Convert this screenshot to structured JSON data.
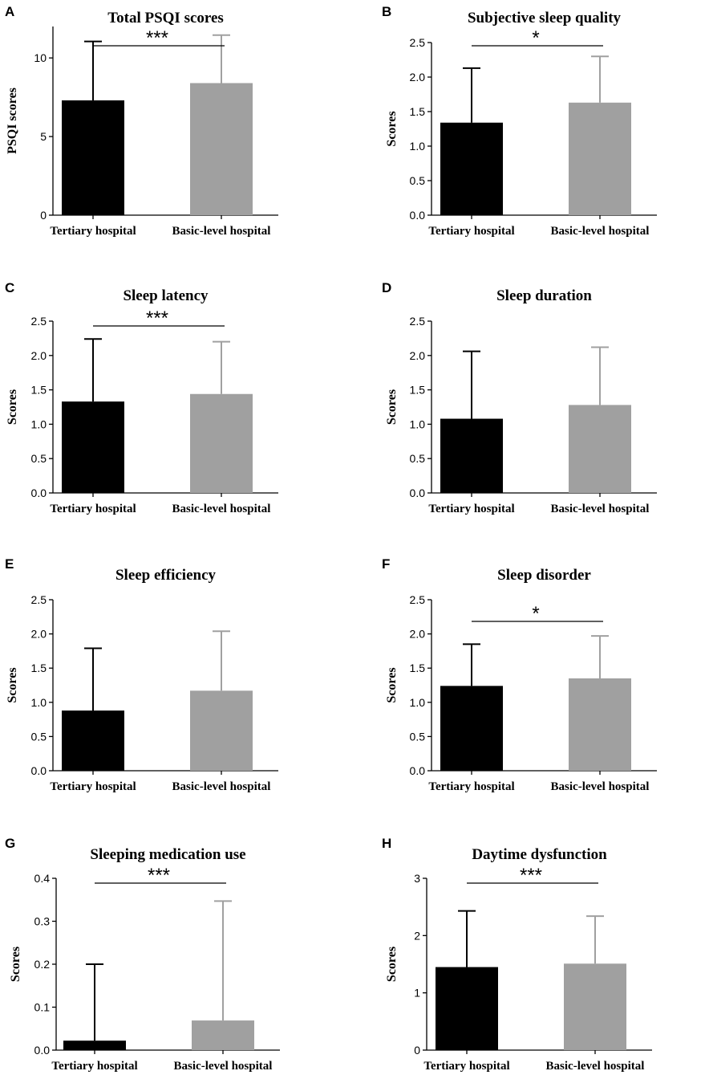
{
  "chart_data": [
    {
      "panel": "A",
      "type": "bar",
      "title": "Total PSQI scores",
      "ylabel": "PSQI scores",
      "categories": [
        "Tertiary hospital",
        "Basic-level hospital"
      ],
      "values": [
        7.3,
        8.4
      ],
      "errors": [
        3.75,
        3.05
      ],
      "ylim": [
        0,
        12
      ],
      "yticks": [
        0,
        5,
        10
      ],
      "ytick_labels": [
        "0",
        "5",
        "10"
      ],
      "significance": "***",
      "colors": [
        "#000000",
        "#a0a0a0"
      ]
    },
    {
      "panel": "B",
      "type": "bar",
      "title": "Subjective sleep quality",
      "ylabel": "Scores",
      "categories": [
        "Tertiary hospital",
        "Basic-level hospital"
      ],
      "values": [
        1.34,
        1.63
      ],
      "errors": [
        0.79,
        0.67
      ],
      "ylim": [
        0,
        2.5
      ],
      "yticks": [
        0,
        0.5,
        1.0,
        1.5,
        2.0,
        2.5
      ],
      "ytick_labels": [
        "0.0",
        "0.5",
        "1.0",
        "1.5",
        "2.0",
        "2.5"
      ],
      "significance": "*",
      "colors": [
        "#000000",
        "#a0a0a0"
      ]
    },
    {
      "panel": "C",
      "type": "bar",
      "title": "Sleep latency",
      "ylabel": "Scores",
      "categories": [
        "Tertiary hospital",
        "Basic-level hospital"
      ],
      "values": [
        1.33,
        1.44
      ],
      "errors": [
        0.91,
        0.76
      ],
      "ylim": [
        0,
        2.5
      ],
      "yticks": [
        0,
        0.5,
        1.0,
        1.5,
        2.0,
        2.5
      ],
      "ytick_labels": [
        "0.0",
        "0.5",
        "1.0",
        "1.5",
        "2.0",
        "2.5"
      ],
      "significance": "***",
      "colors": [
        "#000000",
        "#a0a0a0"
      ]
    },
    {
      "panel": "D",
      "type": "bar",
      "title": "Sleep duration",
      "ylabel": "Scores",
      "categories": [
        "Tertiary hospital",
        "Basic-level hospital"
      ],
      "values": [
        1.08,
        1.28
      ],
      "errors": [
        0.98,
        0.84
      ],
      "ylim": [
        0,
        2.5
      ],
      "yticks": [
        0,
        0.5,
        1.0,
        1.5,
        2.0,
        2.5
      ],
      "ytick_labels": [
        "0.0",
        "0.5",
        "1.0",
        "1.5",
        "2.0",
        "2.5"
      ],
      "significance": "",
      "colors": [
        "#000000",
        "#a0a0a0"
      ]
    },
    {
      "panel": "E",
      "type": "bar",
      "title": "Sleep efficiency",
      "ylabel": "Scores",
      "categories": [
        "Tertiary hospital",
        "Basic-level hospital"
      ],
      "values": [
        0.88,
        1.17
      ],
      "errors": [
        0.91,
        0.87
      ],
      "ylim": [
        0,
        2.5
      ],
      "yticks": [
        0,
        0.5,
        1.0,
        1.5,
        2.0,
        2.5
      ],
      "ytick_labels": [
        "0.0",
        "0.5",
        "1.0",
        "1.5",
        "2.0",
        "2.5"
      ],
      "significance": "",
      "colors": [
        "#000000",
        "#a0a0a0"
      ]
    },
    {
      "panel": "F",
      "type": "bar",
      "title": "Sleep disorder",
      "ylabel": "Scores",
      "categories": [
        "Tertiary hospital",
        "Basic-level hospital"
      ],
      "values": [
        1.24,
        1.35
      ],
      "errors": [
        0.61,
        0.62
      ],
      "ylim": [
        0,
        2.5
      ],
      "yticks": [
        0,
        0.5,
        1.0,
        1.5,
        2.0,
        2.5
      ],
      "ytick_labels": [
        "0.0",
        "0.5",
        "1.0",
        "1.5",
        "2.0",
        "2.5"
      ],
      "significance": "*",
      "colors": [
        "#000000",
        "#a0a0a0"
      ]
    },
    {
      "panel": "G",
      "type": "bar",
      "title": "Sleeping medication use",
      "ylabel": "Scores",
      "categories": [
        "Tertiary hospital",
        "Basic-level hospital"
      ],
      "values": [
        0.022,
        0.069
      ],
      "errors": [
        0.178,
        0.278
      ],
      "ylim": [
        0,
        0.4
      ],
      "yticks": [
        0,
        0.1,
        0.2,
        0.3,
        0.4
      ],
      "ytick_labels": [
        "0.0",
        "0.1",
        "0.2",
        "0.3",
        "0.4"
      ],
      "significance": "***",
      "colors": [
        "#000000",
        "#a0a0a0"
      ]
    },
    {
      "panel": "H",
      "type": "bar",
      "title": "Daytime dysfunction",
      "ylabel": "Scores",
      "categories": [
        "Tertiary hospital",
        "Basic-level hospital"
      ],
      "values": [
        1.45,
        1.51
      ],
      "errors": [
        0.98,
        0.83
      ],
      "ylim": [
        0,
        3
      ],
      "yticks": [
        0,
        1,
        2,
        3
      ],
      "ytick_labels": [
        "0",
        "1",
        "2",
        "3"
      ],
      "significance": "***",
      "colors": [
        "#000000",
        "#a0a0a0"
      ]
    }
  ]
}
